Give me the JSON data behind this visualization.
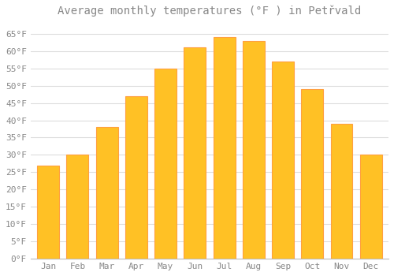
{
  "title": "Average monthly temperatures (°F ) in Petřvald",
  "months": [
    "Jan",
    "Feb",
    "Mar",
    "Apr",
    "May",
    "Jun",
    "Jul",
    "Aug",
    "Sep",
    "Oct",
    "Nov",
    "Dec"
  ],
  "values": [
    27,
    30,
    38,
    47,
    55,
    61,
    64,
    63,
    57,
    49,
    39,
    30
  ],
  "bar_color": "#FFC125",
  "bar_edge_color": "#FFA040",
  "background_color": "#FFFFFF",
  "grid_color": "#DDDDDD",
  "ytick_labels": [
    "0°F",
    "5°F",
    "10°F",
    "15°F",
    "20°F",
    "25°F",
    "30°F",
    "35°F",
    "40°F",
    "45°F",
    "50°F",
    "55°F",
    "60°F",
    "65°F"
  ],
  "ytick_values": [
    0,
    5,
    10,
    15,
    20,
    25,
    30,
    35,
    40,
    45,
    50,
    55,
    60,
    65
  ],
  "ylim": [
    0,
    68
  ],
  "title_fontsize": 10,
  "tick_fontsize": 8,
  "font_color": "#888888",
  "bar_width": 0.75
}
